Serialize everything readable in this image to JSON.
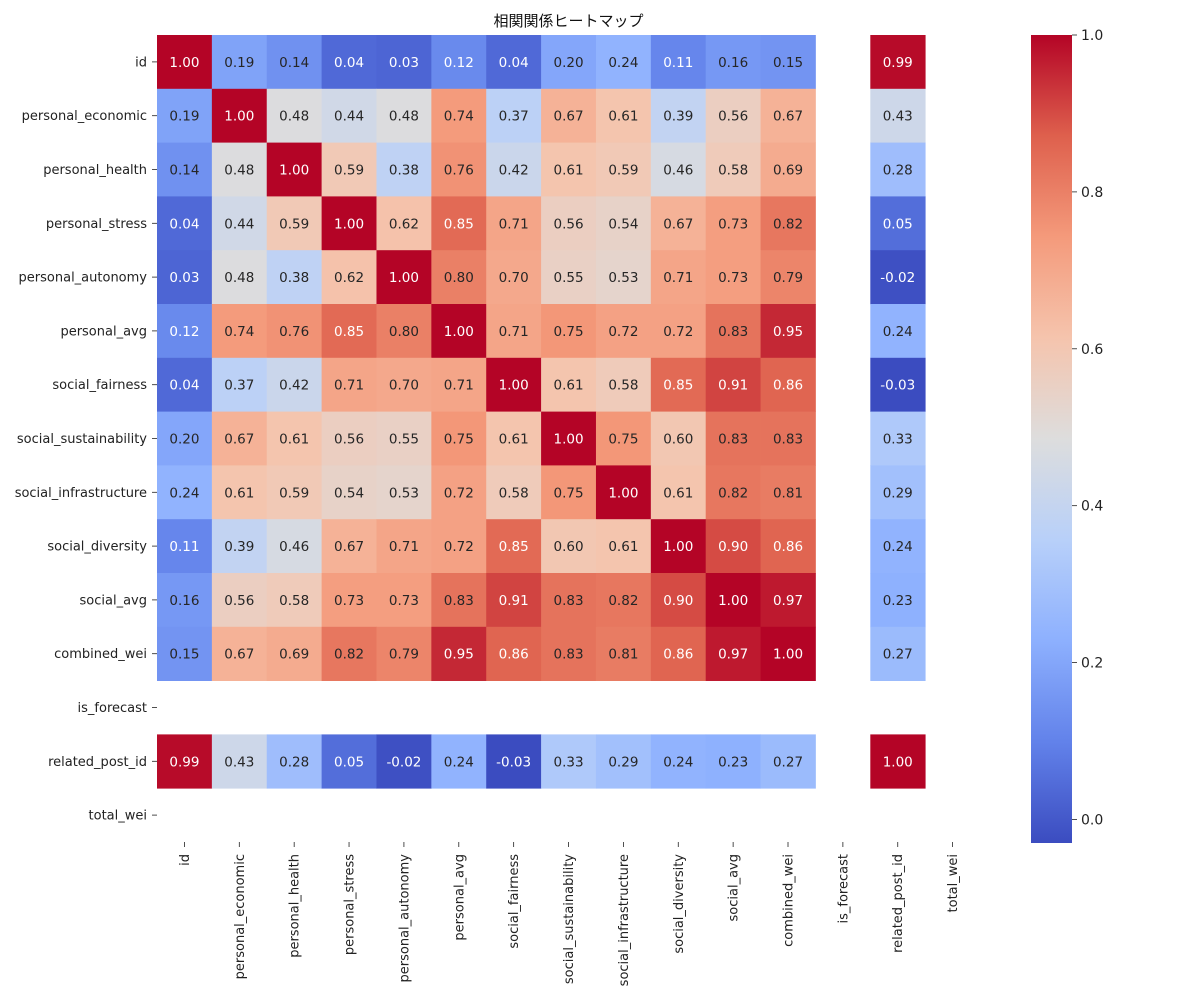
{
  "chart_data": {
    "type": "heatmap",
    "title": "相関関係ヒートマップ",
    "labels": [
      "id",
      "personal_economic",
      "personal_health",
      "personal_stress",
      "personal_autonomy",
      "personal_avg",
      "social_fairness",
      "social_sustainability",
      "social_infrastructure",
      "social_diversity",
      "social_avg",
      "combined_wei",
      "is_forecast",
      "related_post_id",
      "total_wei"
    ],
    "matrix": [
      [
        1.0,
        0.19,
        0.14,
        0.04,
        0.03,
        0.12,
        0.04,
        0.2,
        0.24,
        0.11,
        0.16,
        0.15,
        null,
        0.99,
        null
      ],
      [
        0.19,
        1.0,
        0.48,
        0.44,
        0.48,
        0.74,
        0.37,
        0.67,
        0.61,
        0.39,
        0.56,
        0.67,
        null,
        0.43,
        null
      ],
      [
        0.14,
        0.48,
        1.0,
        0.59,
        0.38,
        0.76,
        0.42,
        0.61,
        0.59,
        0.46,
        0.58,
        0.69,
        null,
        0.28,
        null
      ],
      [
        0.04,
        0.44,
        0.59,
        1.0,
        0.62,
        0.85,
        0.71,
        0.56,
        0.54,
        0.67,
        0.73,
        0.82,
        null,
        0.05,
        null
      ],
      [
        0.03,
        0.48,
        0.38,
        0.62,
        1.0,
        0.8,
        0.7,
        0.55,
        0.53,
        0.71,
        0.73,
        0.79,
        null,
        -0.02,
        null
      ],
      [
        0.12,
        0.74,
        0.76,
        0.85,
        0.8,
        1.0,
        0.71,
        0.75,
        0.72,
        0.72,
        0.83,
        0.95,
        null,
        0.24,
        null
      ],
      [
        0.04,
        0.37,
        0.42,
        0.71,
        0.7,
        0.71,
        1.0,
        0.61,
        0.58,
        0.85,
        0.91,
        0.86,
        null,
        -0.03,
        null
      ],
      [
        0.2,
        0.67,
        0.61,
        0.56,
        0.55,
        0.75,
        0.61,
        1.0,
        0.75,
        0.6,
        0.83,
        0.83,
        null,
        0.33,
        null
      ],
      [
        0.24,
        0.61,
        0.59,
        0.54,
        0.53,
        0.72,
        0.58,
        0.75,
        1.0,
        0.61,
        0.82,
        0.81,
        null,
        0.29,
        null
      ],
      [
        0.11,
        0.39,
        0.46,
        0.67,
        0.71,
        0.72,
        0.85,
        0.6,
        0.61,
        1.0,
        0.9,
        0.86,
        null,
        0.24,
        null
      ],
      [
        0.16,
        0.56,
        0.58,
        0.73,
        0.73,
        0.83,
        0.91,
        0.83,
        0.82,
        0.9,
        1.0,
        0.97,
        null,
        0.23,
        null
      ],
      [
        0.15,
        0.67,
        0.69,
        0.82,
        0.79,
        0.95,
        0.86,
        0.83,
        0.81,
        0.86,
        0.97,
        1.0,
        null,
        0.27,
        null
      ],
      [
        null,
        null,
        null,
        null,
        null,
        null,
        null,
        null,
        null,
        null,
        null,
        null,
        null,
        null,
        null
      ],
      [
        0.99,
        0.43,
        0.28,
        0.05,
        -0.02,
        0.24,
        -0.03,
        0.33,
        0.29,
        0.24,
        0.23,
        0.27,
        null,
        1.0,
        null
      ],
      [
        null,
        null,
        null,
        null,
        null,
        null,
        null,
        null,
        null,
        null,
        null,
        null,
        null,
        null,
        null
      ]
    ],
    "value_format": "0.00",
    "colormap": "coolwarm",
    "vmin": -0.03,
    "vmax": 1.0,
    "colorbar_ticks": [
      0.0,
      0.2,
      0.4,
      0.6,
      0.8,
      1.0
    ],
    "colorbar_tick_labels": [
      "0.0",
      "0.2",
      "0.4",
      "0.6",
      "0.8",
      "1.0"
    ],
    "colors": {
      "low": "#3b4cc0",
      "mid": "#dddddd",
      "high": "#b40426",
      "text_dark": "#262626",
      "text_light": "#ffffff"
    }
  }
}
